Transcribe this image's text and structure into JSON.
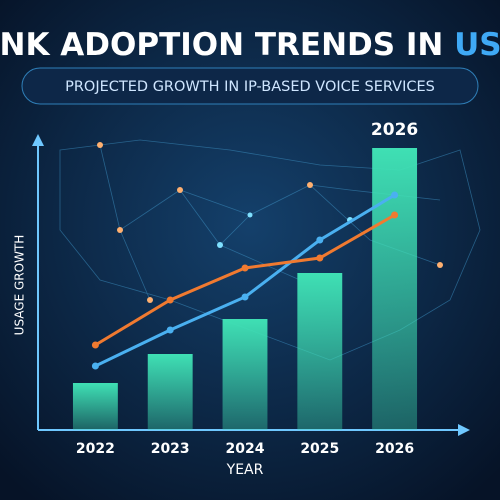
{
  "chart_data": {
    "type": "bar",
    "title": "UNK ADOPTION TRENDS IN",
    "title_highlight": "USA",
    "subtitle": "PROJECTED GROWTH IN IP-BASED VOICE SERVICES",
    "y_label": "USAGE GROWTH",
    "x_label": "YEAR",
    "highlight_label": "2026",
    "categories": [
      "2022",
      "2023",
      "2024",
      "2025",
      "2026"
    ],
    "values": [
      47,
      76,
      111,
      157,
      282
    ],
    "color": "#3fe0b4",
    "ylim": [
      0,
      300
    ],
    "series": [
      {
        "type": "line",
        "color": "#4ab0f0",
        "values": [
          64,
          100,
          133,
          190,
          235
        ]
      },
      {
        "type": "line",
        "color": "#f07a30",
        "values": [
          85,
          130,
          162,
          172,
          215
        ]
      }
    ]
  }
}
